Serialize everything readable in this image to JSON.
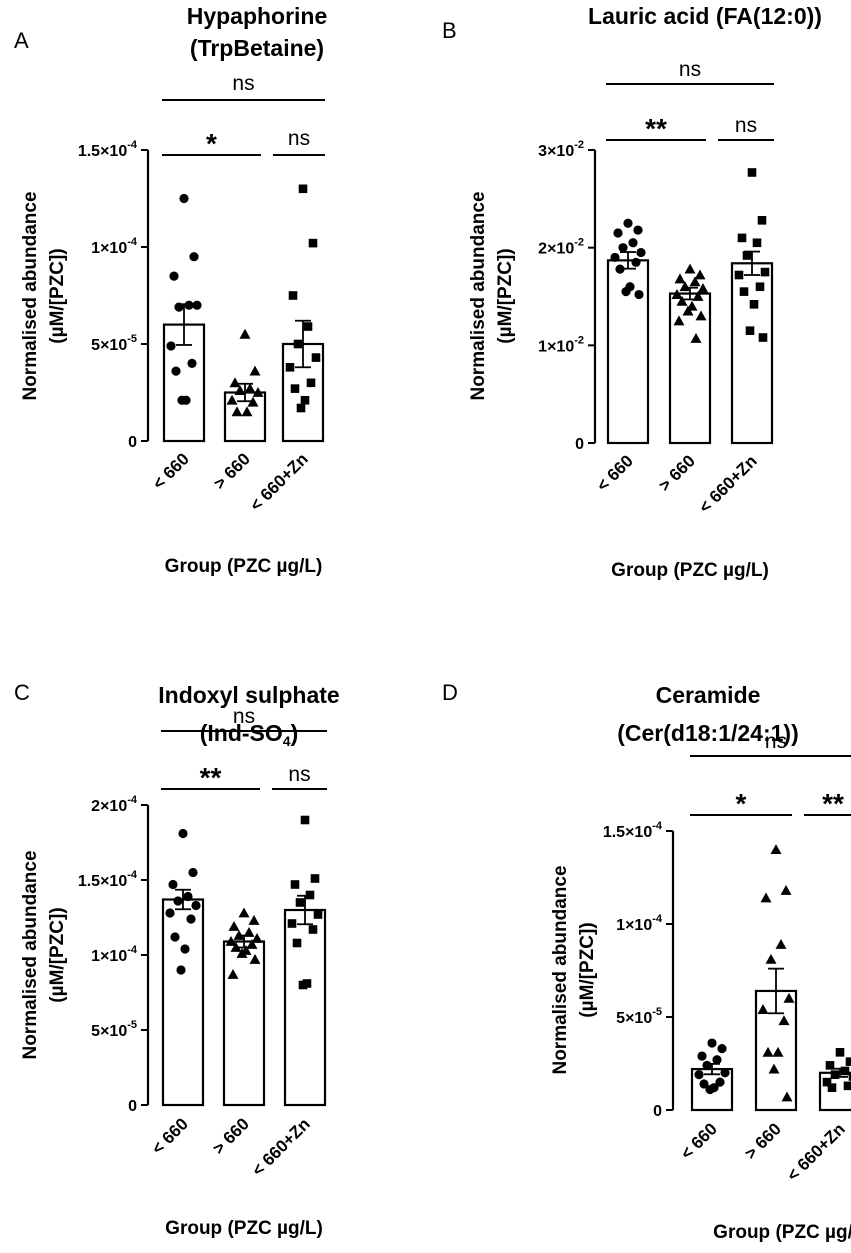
{
  "figure": {
    "panels": [
      "A",
      "B",
      "C",
      "D"
    ]
  },
  "chart_data": [
    {
      "type": "bar",
      "panel": "A",
      "title": [
        "Hypaphorine",
        "(TrpBetaine)"
      ],
      "title_sub": "",
      "ylabel": [
        "Normalised abundance",
        "(µM/[PZC])"
      ],
      "xlabel": "Group (PZC µg/L)",
      "categories": [
        "< 660",
        "> 660",
        "< 660+Zn"
      ],
      "ylim": [
        0,
        0.00015
      ],
      "yticks": [
        {
          "v": 0,
          "m": "0",
          "e": ""
        },
        {
          "v": 5e-05,
          "m": "5×10",
          "e": "-5"
        },
        {
          "v": 0.0001,
          "m": "1×10",
          "e": "-4"
        },
        {
          "v": 0.00015,
          "m": "1.5×10",
          "e": "-4"
        }
      ],
      "values": [
        6e-05,
        2.5e-05,
        5e-05
      ],
      "sem": [
        1.05e-05,
        4.5e-06,
        1.2e-05
      ],
      "markers": [
        "circle",
        "triangle",
        "square"
      ],
      "points": [
        [
          0.000125,
          9.5e-05,
          8.5e-05,
          7e-05,
          6.9e-05,
          7e-05,
          4.9e-05,
          4e-05,
          3.6e-05,
          2.1e-05,
          2.1e-05
        ],
        [
          5.5e-05,
          3.6e-05,
          3e-05,
          2.7e-05,
          2.6e-05,
          2.5e-05,
          2.1e-05,
          2e-05,
          1.5e-05,
          1.5e-05
        ],
        [
          0.00013,
          0.000102,
          7.5e-05,
          5.9e-05,
          5e-05,
          4.3e-05,
          3.8e-05,
          3e-05,
          2.7e-05,
          2.1e-05,
          1.7e-05
        ]
      ],
      "significance": [
        {
          "from": 0,
          "to": 2,
          "label": "ns",
          "level": 2
        },
        {
          "from": 0,
          "to": 1,
          "label": "*",
          "level": 1
        },
        {
          "from": 1,
          "to": 2,
          "label": "ns",
          "level": 1
        }
      ]
    },
    {
      "type": "bar",
      "panel": "B",
      "title": [
        "Lauric acid (FA(12:0))"
      ],
      "title_sub": "",
      "ylabel": [
        "Normalised abundance",
        "(µM/[PZC])"
      ],
      "xlabel": "Group (PZC µg/L)",
      "categories": [
        "< 660",
        "> 660",
        "< 660+Zn"
      ],
      "ylim": [
        0,
        0.03
      ],
      "yticks": [
        {
          "v": 0,
          "m": "0",
          "e": ""
        },
        {
          "v": 0.01,
          "m": "1×10",
          "e": "-2"
        },
        {
          "v": 0.02,
          "m": "2×10",
          "e": "-2"
        },
        {
          "v": 0.03,
          "m": "3×10",
          "e": "-2"
        }
      ],
      "values": [
        0.0187,
        0.0153,
        0.0184
      ],
      "sem": [
        0.00085,
        0.0006,
        0.0012
      ],
      "markers": [
        "circle",
        "triangle",
        "square"
      ],
      "points": [
        [
          0.0225,
          0.0218,
          0.0215,
          0.0205,
          0.02,
          0.0195,
          0.019,
          0.0185,
          0.0178,
          0.016,
          0.0155,
          0.0152
        ],
        [
          0.0178,
          0.0172,
          0.0168,
          0.0165,
          0.016,
          0.0158,
          0.0152,
          0.015,
          0.0145,
          0.014,
          0.0135,
          0.013,
          0.0125,
          0.0107
        ],
        [
          0.0277,
          0.0228,
          0.021,
          0.0205,
          0.0192,
          0.0175,
          0.0172,
          0.016,
          0.0155,
          0.0142,
          0.0115,
          0.0108
        ]
      ],
      "significance": [
        {
          "from": 0,
          "to": 2,
          "label": "ns",
          "level": 2
        },
        {
          "from": 0,
          "to": 1,
          "label": "**",
          "level": 1
        },
        {
          "from": 1,
          "to": 2,
          "label": "ns",
          "level": 1
        }
      ]
    },
    {
      "type": "bar",
      "panel": "C",
      "title": [
        "Indoxyl sulphate",
        "(Ind-SO"
      ],
      "title_sub": "4",
      "title_tail": ")",
      "ylabel": [
        "Normalised abundance",
        "(µM/[PZC])"
      ],
      "xlabel": "Group (PZC µg/L)",
      "categories": [
        "< 660",
        "> 660",
        "< 660+Zn"
      ],
      "ylim": [
        0,
        0.0002
      ],
      "yticks": [
        {
          "v": 0,
          "m": "0",
          "e": ""
        },
        {
          "v": 5e-05,
          "m": "5×10",
          "e": "-5"
        },
        {
          "v": 0.0001,
          "m": "1×10",
          "e": "-4"
        },
        {
          "v": 0.00015,
          "m": "1.5×10",
          "e": "-4"
        },
        {
          "v": 0.0002,
          "m": "2×10",
          "e": "-4"
        }
      ],
      "values": [
        0.000137,
        0.000109,
        0.00013
      ],
      "sem": [
        6.5e-06,
        4e-06,
        9.5e-06
      ],
      "markers": [
        "circle",
        "triangle",
        "square"
      ],
      "points": [
        [
          0.000181,
          0.000155,
          0.000147,
          0.000139,
          0.000136,
          0.000133,
          0.000128,
          0.000124,
          0.000112,
          0.000104,
          9e-05
        ],
        [
          0.000128,
          0.000123,
          0.000119,
          0.000115,
          0.000113,
          0.000111,
          0.000109,
          0.000107,
          0.000105,
          0.000103,
          0.000101,
          9.7e-05,
          8.7e-05
        ],
        [
          0.00019,
          0.000151,
          0.000147,
          0.00014,
          0.000135,
          0.000127,
          0.000121,
          0.000117,
          0.000108,
          8.1e-05,
          8e-05
        ]
      ],
      "significance": [
        {
          "from": 0,
          "to": 2,
          "label": "ns",
          "level": 2
        },
        {
          "from": 0,
          "to": 1,
          "label": "**",
          "level": 1
        },
        {
          "from": 1,
          "to": 2,
          "label": "ns",
          "level": 1
        }
      ]
    },
    {
      "type": "bar",
      "panel": "D",
      "title": [
        "Ceramide",
        "(Cer(d18:1/24:1))"
      ],
      "title_sub": "",
      "ylabel": [
        "Normalised abundance",
        "(µM/[PZC])"
      ],
      "xlabel": "Group (PZC µg/L)",
      "categories": [
        "< 660",
        "> 660",
        "< 660+Zn"
      ],
      "ylim": [
        0,
        0.00015
      ],
      "yticks": [
        {
          "v": 0,
          "m": "0",
          "e": ""
        },
        {
          "v": 5e-05,
          "m": "5×10",
          "e": "-5"
        },
        {
          "v": 0.0001,
          "m": "1×10",
          "e": "-4"
        },
        {
          "v": 0.00015,
          "m": "1.5×10",
          "e": "-4"
        }
      ],
      "values": [
        2.2e-05,
        6.4e-05,
        2e-05
      ],
      "sem": [
        2.8e-06,
        1.2e-05,
        2.2e-06
      ],
      "markers": [
        "circle",
        "triangle",
        "square"
      ],
      "points": [
        [
          3.6e-05,
          3.3e-05,
          2.9e-05,
          2.7e-05,
          2.4e-05,
          2e-05,
          1.9e-05,
          1.5e-05,
          1.4e-05,
          1.2e-05,
          1.1e-05
        ],
        [
          0.00014,
          0.000118,
          0.000114,
          8.9e-05,
          8.1e-05,
          6e-05,
          5.4e-05,
          4.8e-05,
          3.1e-05,
          3.1e-05,
          2.2e-05,
          7e-06
        ],
        [
          3.1e-05,
          2.6e-05,
          2.4e-05,
          2.1e-05,
          1.9e-05,
          1.8e-05,
          1.5e-05,
          1.3e-05,
          1.2e-05
        ]
      ],
      "significance": [
        {
          "from": 0,
          "to": 2,
          "label": "ns",
          "level": 2
        },
        {
          "from": 0,
          "to": 1,
          "label": "*",
          "level": 1
        },
        {
          "from": 1,
          "to": 2,
          "label": "**",
          "level": 1
        }
      ]
    }
  ]
}
